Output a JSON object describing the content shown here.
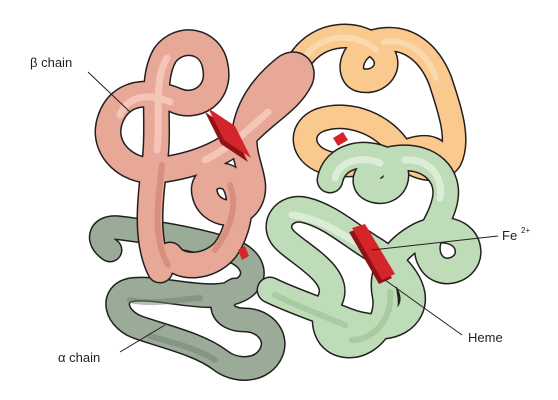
{
  "labels": {
    "beta_chain": "β chain",
    "alpha_chain": "α chain",
    "iron": "Fe",
    "iron_charge": "2+",
    "heme": "Heme"
  },
  "colors": {
    "beta_chain_fill": "#e8a898",
    "beta_chain_shadow": "#c97c6a",
    "beta_chain_highlight": "#f6ccc0",
    "orange_chain_fill": "#f9c98e",
    "orange_chain_shadow": "#e0a35e",
    "alpha_chain_fill": "#9aab98",
    "alpha_chain_shadow": "#6f8270",
    "green_chain_fill": "#bfdcb8",
    "green_chain_shadow": "#93b98c",
    "heme_red": "#d4262a",
    "heme_dark": "#8e1216",
    "outline": "#231f20"
  }
}
